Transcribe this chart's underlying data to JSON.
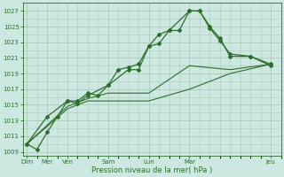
{
  "xlabel": "Pression niveau de la mer( hPa )",
  "background_color": "#cce8e0",
  "grid_color": "#aaccbb",
  "line_color": "#2d6e2d",
  "yticks": [
    1009,
    1011,
    1013,
    1015,
    1017,
    1019,
    1021,
    1023,
    1025,
    1027
  ],
  "ylim": [
    1008.5,
    1028.0
  ],
  "xlim": [
    -0.2,
    12.5
  ],
  "major_x_positions": [
    0,
    1,
    2,
    4,
    6,
    8,
    12
  ],
  "major_x_labels": [
    "Dim",
    "Mer",
    "Ven",
    "Sam",
    "Lun",
    "Mar",
    "Jeu"
  ],
  "line1_x": [
    0,
    0.5,
    1,
    1.5,
    2,
    2.5,
    3,
    3.5,
    4,
    4.5,
    5,
    5.5,
    6,
    6.5,
    7,
    7.5,
    8,
    8.5,
    9,
    9.5,
    10,
    11,
    12
  ],
  "line1_y": [
    1010.0,
    1009.3,
    1011.5,
    1013.5,
    1015.5,
    1015.5,
    1016.5,
    1016.2,
    1017.5,
    1019.5,
    1019.8,
    1020.2,
    1022.5,
    1024.0,
    1024.5,
    1024.5,
    1027.0,
    1027.0,
    1025.0,
    1023.5,
    1021.2,
    1021.2,
    1020.0
  ],
  "line2_x": [
    0,
    1,
    2,
    2.5,
    3,
    4,
    5,
    5.5,
    6,
    6.5,
    7,
    8,
    8.5,
    9,
    9.5,
    10,
    11,
    12
  ],
  "line2_y": [
    1010.0,
    1013.5,
    1015.5,
    1015.2,
    1016.2,
    1017.5,
    1019.5,
    1019.5,
    1022.5,
    1022.8,
    1024.5,
    1027.0,
    1027.0,
    1024.8,
    1023.2,
    1021.5,
    1021.2,
    1020.2
  ],
  "line3_x": [
    0,
    2,
    3,
    4,
    6,
    8,
    10,
    12
  ],
  "line3_y": [
    1010.0,
    1014.8,
    1015.8,
    1016.5,
    1016.5,
    1020.0,
    1019.5,
    1020.2
  ],
  "line4_x": [
    0,
    2,
    3,
    4,
    6,
    8,
    10,
    12
  ],
  "line4_y": [
    1010.0,
    1014.5,
    1015.5,
    1015.5,
    1015.5,
    1017.0,
    1019.0,
    1020.2
  ]
}
